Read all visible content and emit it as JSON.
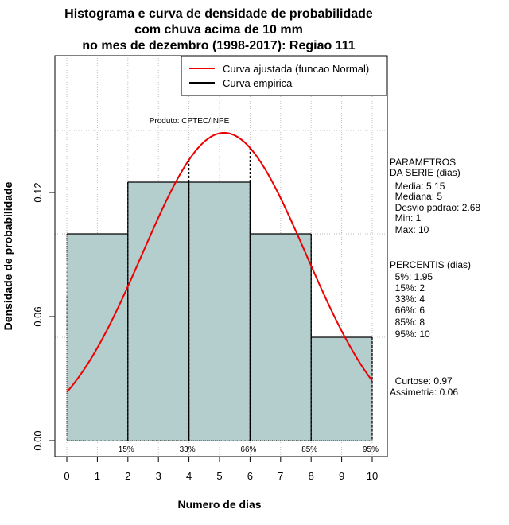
{
  "chart_data": {
    "type": "bar",
    "title_lines": [
      "Histograma e curva de densidade de probabilidade",
      "com chuva acima de 10 mm",
      "no mes de dezembro (1998-2017): Regiao 111"
    ],
    "xlabel": "Numero de dias",
    "ylabel": "Densidade de probabilidade",
    "xlim": [
      -0.4,
      10.4
    ],
    "ylim": [
      0,
      0.1857
    ],
    "x_ticks": [
      0,
      1,
      2,
      3,
      4,
      5,
      6,
      7,
      8,
      9,
      10
    ],
    "x_tick_labels": [
      "0",
      "1",
      "2",
      "3",
      "4",
      "5",
      "6",
      "7",
      "8",
      "9",
      "10"
    ],
    "y_ticks": [
      0.0,
      0.06,
      0.12
    ],
    "y_tick_labels": [
      "0.00",
      "0.06",
      "0.12"
    ],
    "bins": [
      {
        "x0": 0,
        "x1": 2,
        "density": 0.1
      },
      {
        "x0": 2,
        "x1": 4,
        "density": 0.125
      },
      {
        "x0": 4,
        "x1": 6,
        "density": 0.125
      },
      {
        "x0": 6,
        "x1": 8,
        "density": 0.1
      },
      {
        "x0": 8,
        "x1": 10,
        "density": 0.05
      }
    ],
    "normal_fit": {
      "mean": 5.15,
      "sd": 2.68
    },
    "gridlines_y": [
      0.05,
      0.1,
      0.15
    ],
    "percentile_markers": [
      {
        "x": 2,
        "label": "15%"
      },
      {
        "x": 4,
        "label": "33%"
      },
      {
        "x": 6,
        "label": "66%"
      },
      {
        "x": 8,
        "label": "85%"
      },
      {
        "x": 10,
        "label": "95%"
      }
    ],
    "product_label": "Produto: CPTEC/INPE",
    "legend": {
      "position": "top-right",
      "entries": [
        {
          "label": "Curva ajustada (funcao Normal)",
          "color": "#ee0000"
        },
        {
          "label": "Curva empirica",
          "color": "#000000"
        }
      ]
    },
    "colors": {
      "bar_fill": "#b4cdcd",
      "curve": "#ee0000",
      "grid": "#bebebe"
    }
  },
  "side_panel": {
    "parametros": [
      "PARAMETROS",
      "DA SERIE (dias)",
      "  Media: 5.15",
      "  Mediana: 5",
      "  Desvio padrao: 2.68",
      "  Min: 1",
      "  Max: 10"
    ],
    "percentis": [
      "PERCENTIS (dias)",
      "  5%: 1.95",
      "  15%: 2",
      "  33%: 4",
      "  66%: 6",
      "  85%: 8",
      "  95%: 10"
    ],
    "shape": [
      "  Curtose: 0.97",
      "Assimetria: 0.06"
    ]
  }
}
